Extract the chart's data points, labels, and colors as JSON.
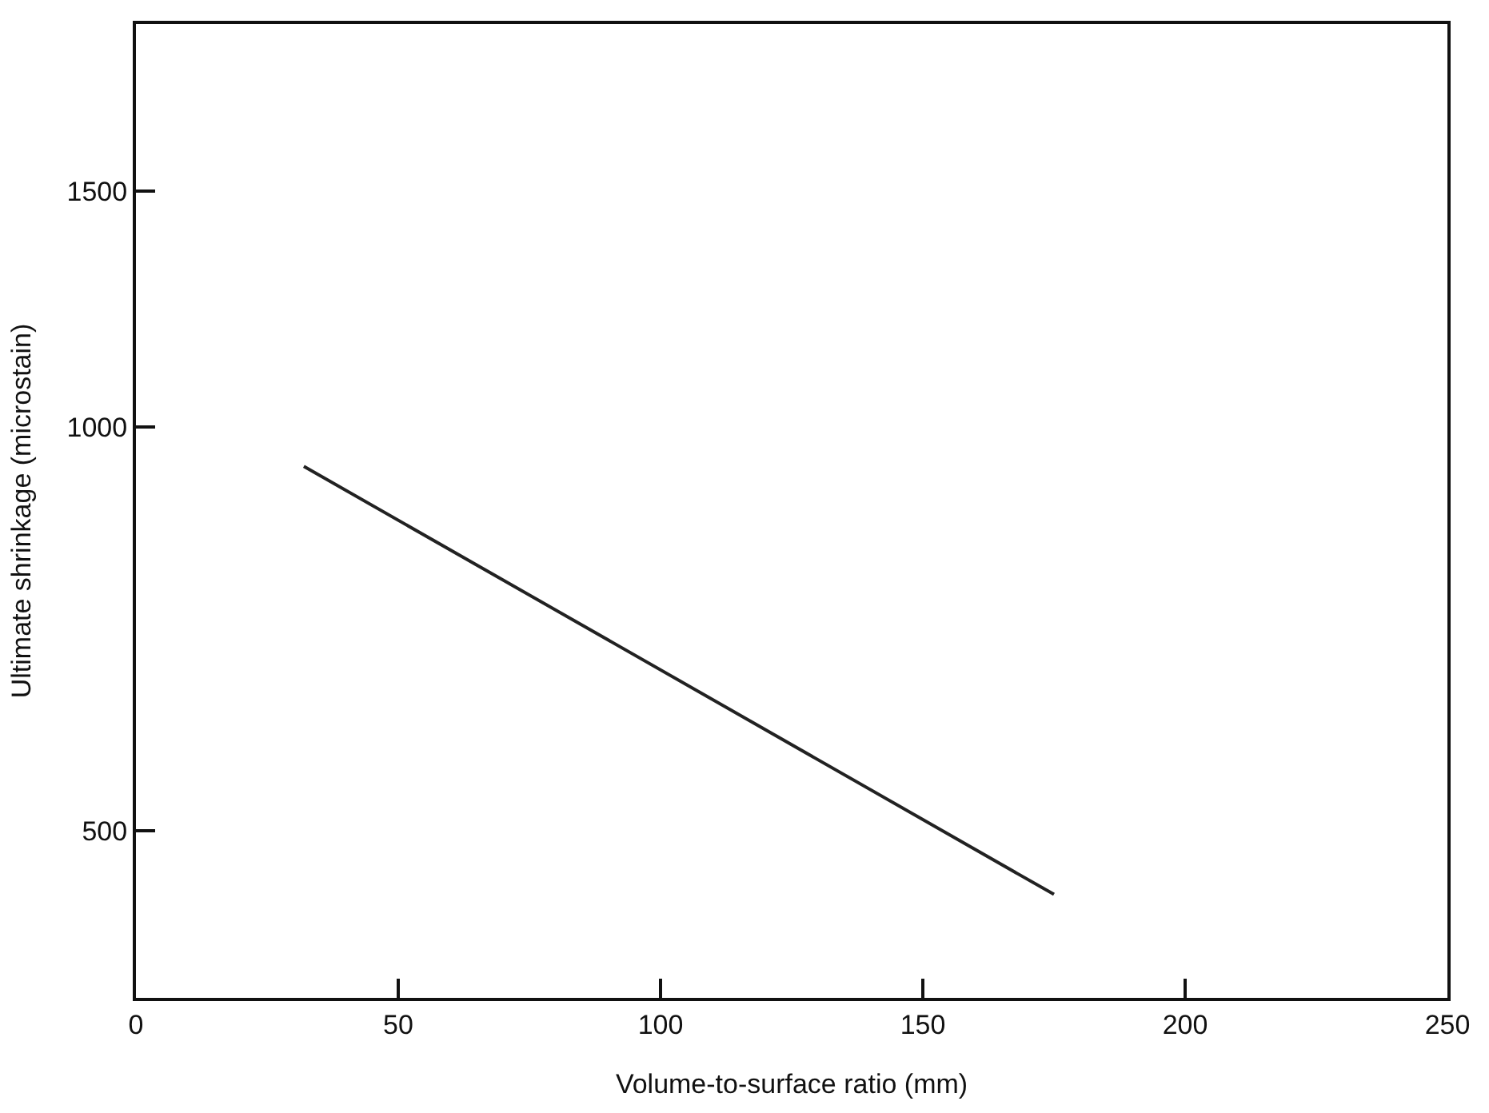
{
  "chart_data": {
    "type": "line",
    "xlabel": "Volume-to-surface ratio (mm)",
    "ylabel": "Ultimate shrinkage (microstain)",
    "x": [
      32,
      175
    ],
    "series": [
      {
        "color": "#222222",
        "values": [
          935,
          448
        ]
      }
    ],
    "xlim": [
      0,
      250
    ],
    "xticks": [
      0,
      50,
      100,
      150,
      200,
      250
    ],
    "ylim": [
      375,
      2000
    ],
    "yticks": [
      500,
      1000,
      1500
    ],
    "log": "y",
    "marker": "none",
    "line_style": "solid"
  }
}
